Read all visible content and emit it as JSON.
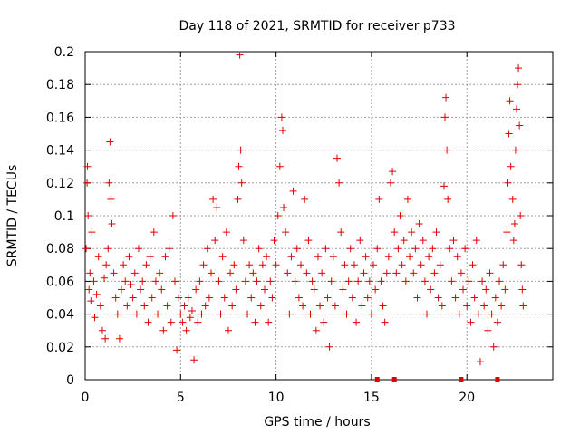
{
  "chart_data": {
    "type": "scatter",
    "title": "Day 118 of 2021, SRMTID for receiver p733",
    "xlabel": "GPS time / hours",
    "ylabel": "SRMTID / TECUs",
    "xlim": [
      0,
      24.5
    ],
    "ylim": [
      0,
      0.2
    ],
    "xticks": [
      0,
      5,
      10,
      15,
      20
    ],
    "xtick_labels": [
      "0",
      "5",
      "10",
      "15",
      "20"
    ],
    "yticks": [
      0,
      0.02,
      0.04,
      0.06,
      0.08,
      0.1,
      0.12,
      0.14,
      0.16,
      0.18,
      0.2
    ],
    "ytick_labels": [
      "0",
      "0.02",
      "0.04",
      "0.06",
      "0.08",
      "0.1",
      "0.12",
      "0.14",
      "0.16",
      "0.18",
      "0.2"
    ],
    "grid": true,
    "marker": "+",
    "color": "#e00000",
    "series": [
      {
        "name": "SRMTID",
        "points": [
          [
            0.05,
            0.08
          ],
          [
            0.1,
            0.12
          ],
          [
            0.12,
            0.13
          ],
          [
            0.15,
            0.1
          ],
          [
            0.2,
            0.055
          ],
          [
            0.25,
            0.065
          ],
          [
            0.3,
            0.048
          ],
          [
            0.35,
            0.09
          ],
          [
            0.45,
            0.06
          ],
          [
            0.5,
            0.038
          ],
          [
            0.6,
            0.052
          ],
          [
            0.7,
            0.075
          ],
          [
            0.8,
            0.045
          ],
          [
            0.9,
            0.03
          ],
          [
            1.0,
            0.062
          ],
          [
            1.05,
            0.025
          ],
          [
            1.1,
            0.07
          ],
          [
            1.2,
            0.08
          ],
          [
            1.25,
            0.12
          ],
          [
            1.3,
            0.145
          ],
          [
            1.35,
            0.11
          ],
          [
            1.4,
            0.095
          ],
          [
            1.5,
            0.065
          ],
          [
            1.6,
            0.05
          ],
          [
            1.7,
            0.04
          ],
          [
            1.8,
            0.025
          ],
          [
            1.9,
            0.055
          ],
          [
            2.0,
            0.07
          ],
          [
            2.1,
            0.06
          ],
          [
            2.2,
            0.045
          ],
          [
            2.3,
            0.075
          ],
          [
            2.4,
            0.058
          ],
          [
            2.5,
            0.05
          ],
          [
            2.6,
            0.065
          ],
          [
            2.7,
            0.04
          ],
          [
            2.8,
            0.08
          ],
          [
            2.9,
            0.055
          ],
          [
            3.0,
            0.06
          ],
          [
            3.1,
            0.045
          ],
          [
            3.2,
            0.07
          ],
          [
            3.3,
            0.035
          ],
          [
            3.4,
            0.075
          ],
          [
            3.5,
            0.05
          ],
          [
            3.6,
            0.09
          ],
          [
            3.7,
            0.06
          ],
          [
            3.8,
            0.04
          ],
          [
            3.9,
            0.065
          ],
          [
            4.0,
            0.055
          ],
          [
            4.1,
            0.03
          ],
          [
            4.2,
            0.075
          ],
          [
            4.3,
            0.045
          ],
          [
            4.4,
            0.08
          ],
          [
            4.5,
            0.035
          ],
          [
            4.6,
            0.1
          ],
          [
            4.7,
            0.06
          ],
          [
            4.8,
            0.018
          ],
          [
            4.9,
            0.05
          ],
          [
            5.0,
            0.04
          ],
          [
            5.1,
            0.035
          ],
          [
            5.2,
            0.045
          ],
          [
            5.3,
            0.03
          ],
          [
            5.4,
            0.05
          ],
          [
            5.5,
            0.038
          ],
          [
            5.6,
            0.042
          ],
          [
            5.7,
            0.012
          ],
          [
            5.8,
            0.055
          ],
          [
            5.9,
            0.035
          ],
          [
            6.0,
            0.06
          ],
          [
            6.1,
            0.04
          ],
          [
            6.2,
            0.07
          ],
          [
            6.3,
            0.045
          ],
          [
            6.4,
            0.08
          ],
          [
            6.5,
            0.05
          ],
          [
            6.6,
            0.065
          ],
          [
            6.7,
            0.11
          ],
          [
            6.8,
            0.085
          ],
          [
            6.9,
            0.105
          ],
          [
            7.0,
            0.06
          ],
          [
            7.1,
            0.04
          ],
          [
            7.2,
            0.075
          ],
          [
            7.3,
            0.05
          ],
          [
            7.4,
            0.09
          ],
          [
            7.5,
            0.03
          ],
          [
            7.6,
            0.065
          ],
          [
            7.7,
            0.045
          ],
          [
            7.8,
            0.07
          ],
          [
            7.9,
            0.055
          ],
          [
            8.0,
            0.11
          ],
          [
            8.05,
            0.13
          ],
          [
            8.1,
            0.198
          ],
          [
            8.15,
            0.14
          ],
          [
            8.2,
            0.12
          ],
          [
            8.3,
            0.085
          ],
          [
            8.4,
            0.06
          ],
          [
            8.5,
            0.04
          ],
          [
            8.6,
            0.07
          ],
          [
            8.7,
            0.05
          ],
          [
            8.8,
            0.065
          ],
          [
            8.9,
            0.035
          ],
          [
            9.0,
            0.06
          ],
          [
            9.1,
            0.08
          ],
          [
            9.2,
            0.045
          ],
          [
            9.3,
            0.07
          ],
          [
            9.4,
            0.055
          ],
          [
            9.5,
            0.075
          ],
          [
            9.6,
            0.035
          ],
          [
            9.7,
            0.06
          ],
          [
            9.8,
            0.05
          ],
          [
            9.9,
            0.085
          ],
          [
            10.0,
            0.07
          ],
          [
            10.1,
            0.1
          ],
          [
            10.2,
            0.13
          ],
          [
            10.3,
            0.16
          ],
          [
            10.35,
            0.152
          ],
          [
            10.4,
            0.105
          ],
          [
            10.5,
            0.09
          ],
          [
            10.6,
            0.065
          ],
          [
            10.7,
            0.04
          ],
          [
            10.8,
            0.075
          ],
          [
            10.9,
            0.115
          ],
          [
            11.0,
            0.06
          ],
          [
            11.1,
            0.08
          ],
          [
            11.2,
            0.05
          ],
          [
            11.3,
            0.07
          ],
          [
            11.4,
            0.045
          ],
          [
            11.5,
            0.11
          ],
          [
            11.6,
            0.065
          ],
          [
            11.7,
            0.085
          ],
          [
            11.8,
            0.04
          ],
          [
            11.9,
            0.06
          ],
          [
            12.0,
            0.055
          ],
          [
            12.1,
            0.03
          ],
          [
            12.2,
            0.075
          ],
          [
            12.3,
            0.045
          ],
          [
            12.4,
            0.065
          ],
          [
            12.5,
            0.035
          ],
          [
            12.6,
            0.08
          ],
          [
            12.7,
            0.05
          ],
          [
            12.8,
            0.02
          ],
          [
            12.9,
            0.06
          ],
          [
            13.0,
            0.075
          ],
          [
            13.1,
            0.045
          ],
          [
            13.2,
            0.135
          ],
          [
            13.3,
            0.12
          ],
          [
            13.4,
            0.09
          ],
          [
            13.5,
            0.055
          ],
          [
            13.6,
            0.07
          ],
          [
            13.7,
            0.04
          ],
          [
            13.8,
            0.06
          ],
          [
            13.9,
            0.08
          ],
          [
            14.0,
            0.05
          ],
          [
            14.1,
            0.07
          ],
          [
            14.2,
            0.035
          ],
          [
            14.3,
            0.06
          ],
          [
            14.4,
            0.085
          ],
          [
            14.5,
            0.045
          ],
          [
            14.6,
            0.065
          ],
          [
            14.7,
            0.075
          ],
          [
            14.8,
            0.05
          ],
          [
            14.9,
            0.06
          ],
          [
            15.0,
            0.04
          ],
          [
            15.1,
            0.07
          ],
          [
            15.2,
            0.055
          ],
          [
            15.3,
            0.08
          ],
          [
            15.4,
            0.11
          ],
          [
            15.5,
            0.06
          ],
          [
            15.6,
            0.045
          ],
          [
            15.7,
            0.035
          ],
          [
            15.8,
            0.065
          ],
          [
            15.9,
            0.075
          ],
          [
            16.0,
            0.12
          ],
          [
            16.1,
            0.127
          ],
          [
            16.2,
            0.09
          ],
          [
            16.3,
            0.065
          ],
          [
            16.4,
            0.08
          ],
          [
            16.5,
            0.1
          ],
          [
            16.6,
            0.07
          ],
          [
            16.7,
            0.085
          ],
          [
            16.8,
            0.06
          ],
          [
            16.9,
            0.11
          ],
          [
            17.0,
            0.075
          ],
          [
            17.1,
            0.09
          ],
          [
            17.2,
            0.065
          ],
          [
            17.3,
            0.08
          ],
          [
            17.4,
            0.05
          ],
          [
            17.5,
            0.095
          ],
          [
            17.6,
            0.07
          ],
          [
            17.7,
            0.085
          ],
          [
            17.8,
            0.06
          ],
          [
            17.9,
            0.04
          ],
          [
            18.0,
            0.075
          ],
          [
            18.1,
            0.055
          ],
          [
            18.2,
            0.08
          ],
          [
            18.3,
            0.065
          ],
          [
            18.4,
            0.09
          ],
          [
            18.5,
            0.05
          ],
          [
            18.6,
            0.07
          ],
          [
            18.7,
            0.045
          ],
          [
            18.8,
            0.118
          ],
          [
            18.85,
            0.16
          ],
          [
            18.9,
            0.172
          ],
          [
            18.95,
            0.14
          ],
          [
            19.0,
            0.11
          ],
          [
            19.1,
            0.08
          ],
          [
            19.2,
            0.06
          ],
          [
            19.3,
            0.085
          ],
          [
            19.4,
            0.05
          ],
          [
            19.5,
            0.075
          ],
          [
            19.6,
            0.04
          ],
          [
            19.7,
            0.065
          ],
          [
            19.8,
            0.055
          ],
          [
            19.9,
            0.08
          ],
          [
            20.0,
            0.045
          ],
          [
            20.1,
            0.06
          ],
          [
            20.2,
            0.035
          ],
          [
            20.3,
            0.07
          ],
          [
            20.4,
            0.05
          ],
          [
            20.5,
            0.085
          ],
          [
            20.6,
            0.04
          ],
          [
            20.7,
            0.011
          ],
          [
            20.8,
            0.06
          ],
          [
            20.9,
            0.045
          ],
          [
            21.0,
            0.055
          ],
          [
            21.1,
            0.03
          ],
          [
            21.2,
            0.065
          ],
          [
            21.3,
            0.04
          ],
          [
            21.4,
            0.02
          ],
          [
            21.5,
            0.05
          ],
          [
            21.6,
            0.035
          ],
          [
            21.7,
            0.06
          ],
          [
            21.8,
            0.045
          ],
          [
            21.9,
            0.07
          ],
          [
            22.0,
            0.055
          ],
          [
            22.1,
            0.09
          ],
          [
            22.15,
            0.12
          ],
          [
            22.2,
            0.15
          ],
          [
            22.25,
            0.17
          ],
          [
            22.3,
            0.13
          ],
          [
            22.4,
            0.11
          ],
          [
            22.45,
            0.085
          ],
          [
            22.5,
            0.095
          ],
          [
            22.55,
            0.14
          ],
          [
            22.6,
            0.165
          ],
          [
            22.65,
            0.18
          ],
          [
            22.7,
            0.19
          ],
          [
            22.75,
            0.155
          ],
          [
            22.8,
            0.1
          ],
          [
            22.85,
            0.07
          ],
          [
            22.9,
            0.055
          ],
          [
            22.95,
            0.045
          ]
        ]
      }
    ],
    "zero_marks_x": [
      15.3,
      16.2,
      19.7,
      21.6
    ]
  }
}
